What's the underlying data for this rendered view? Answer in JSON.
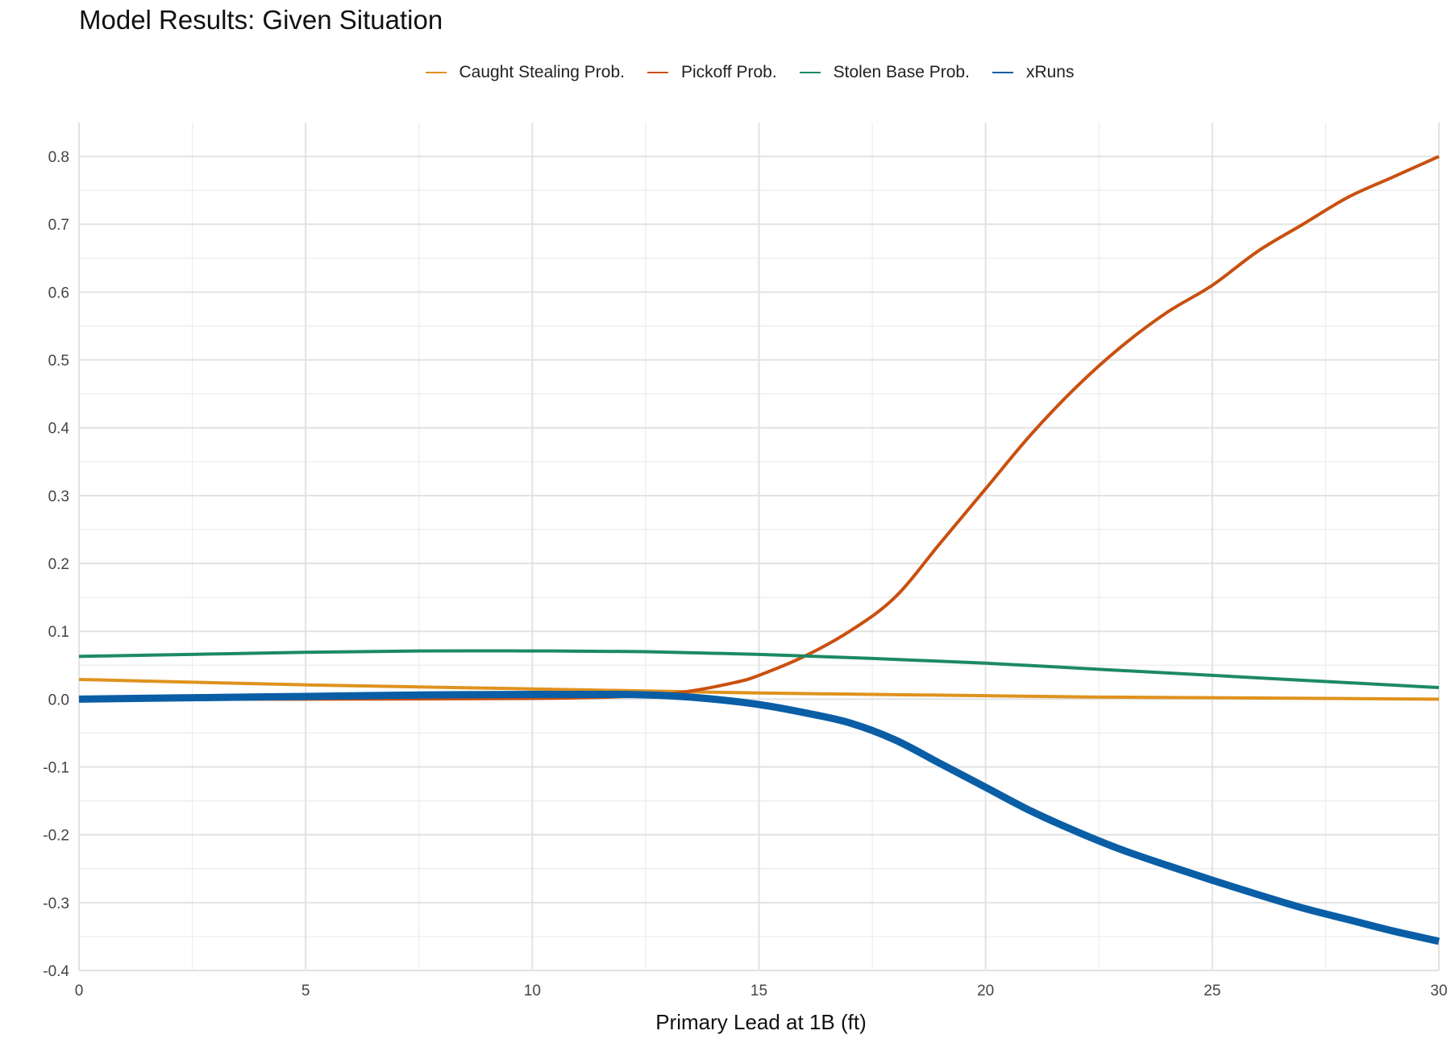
{
  "chart_data": {
    "type": "line",
    "title": "Model Results: Given Situation",
    "xlabel": "Primary Lead at 1B (ft)",
    "ylabel": "",
    "xlim": [
      0,
      30
    ],
    "ylim": [
      -0.4,
      0.85
    ],
    "x_ticks": [
      0,
      5,
      10,
      15,
      20,
      25,
      30
    ],
    "y_ticks": [
      -0.4,
      -0.3,
      -0.2,
      -0.1,
      0.0,
      0.1,
      0.2,
      0.3,
      0.4,
      0.5,
      0.6,
      0.7,
      0.8
    ],
    "grid": true,
    "legend_position": "top",
    "series": [
      {
        "name": "Caught Stealing Prob.",
        "color": "#E0921E",
        "x": [
          0,
          2.5,
          5,
          7.5,
          10,
          12.5,
          15,
          17.5,
          20,
          22.5,
          25,
          27.5,
          30
        ],
        "y": [
          0.029,
          0.025,
          0.021,
          0.018,
          0.015,
          0.012,
          0.009,
          0.007,
          0.005,
          0.003,
          0.002,
          0.001,
          0.0
        ]
      },
      {
        "name": "Pickoff Prob.",
        "color": "#C9500F",
        "x": [
          0,
          5,
          10,
          12.5,
          13.5,
          14.5,
          15,
          16,
          17,
          18,
          19,
          20,
          21,
          22,
          23,
          24,
          25,
          26,
          27,
          28,
          29,
          30
        ],
        "y": [
          0.0,
          0.0,
          0.001,
          0.005,
          0.012,
          0.025,
          0.035,
          0.063,
          0.1,
          0.15,
          0.23,
          0.31,
          0.39,
          0.46,
          0.52,
          0.57,
          0.61,
          0.66,
          0.7,
          0.74,
          0.77,
          0.8
        ]
      },
      {
        "name": "Stolen Base Prob.",
        "color": "#1C8A63",
        "x": [
          0,
          2.5,
          5,
          7.5,
          10,
          12.5,
          15,
          17.5,
          20,
          22.5,
          25,
          27.5,
          30
        ],
        "y": [
          0.063,
          0.066,
          0.069,
          0.071,
          0.071,
          0.07,
          0.066,
          0.06,
          0.053,
          0.044,
          0.035,
          0.026,
          0.017
        ]
      },
      {
        "name": "xRuns",
        "color": "#0A5EA6",
        "x": [
          0,
          2.5,
          5,
          7.5,
          10,
          12,
          13,
          14,
          15,
          16,
          17,
          18,
          19,
          20,
          21,
          22,
          23,
          24,
          25,
          26,
          27,
          28,
          29,
          30
        ],
        "y": [
          0.0,
          0.002,
          0.004,
          0.006,
          0.007,
          0.007,
          0.005,
          0.0,
          -0.008,
          -0.02,
          -0.035,
          -0.06,
          -0.095,
          -0.13,
          -0.165,
          -0.195,
          -0.222,
          -0.245,
          -0.267,
          -0.288,
          -0.308,
          -0.325,
          -0.342,
          -0.357
        ]
      }
    ]
  }
}
